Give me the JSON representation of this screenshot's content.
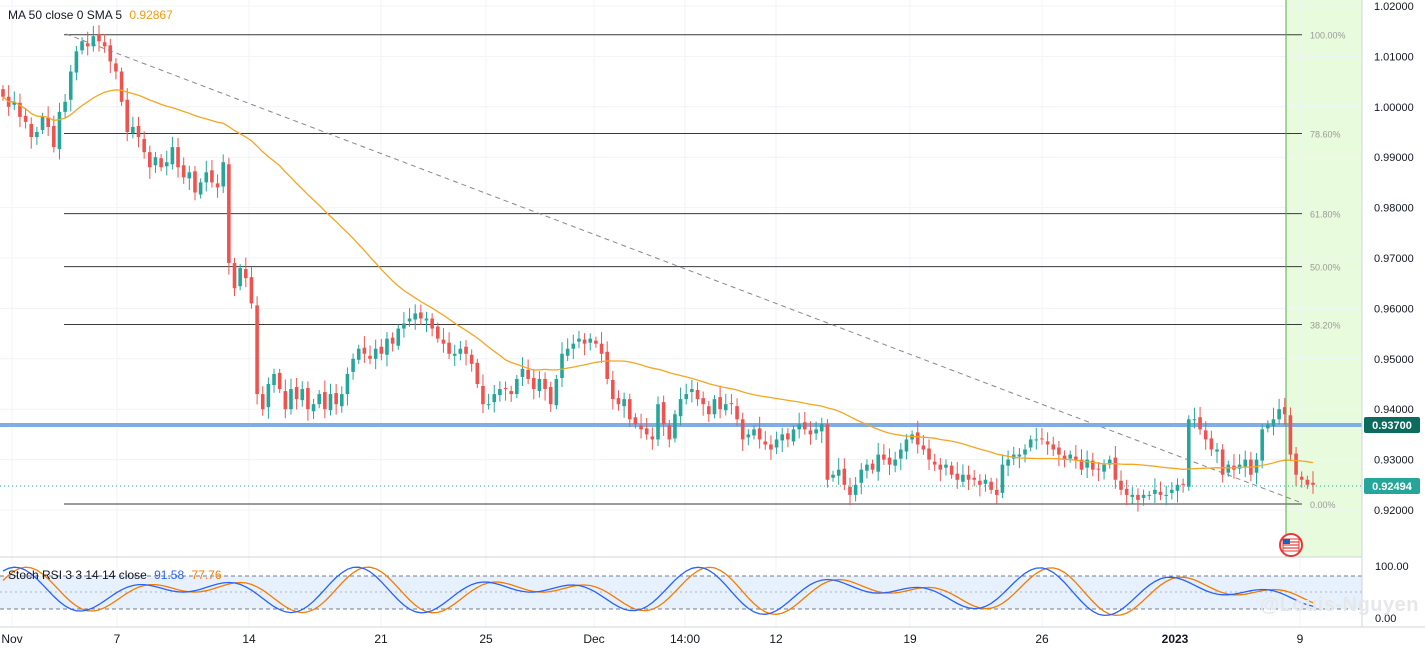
{
  "main_legend": {
    "text": "MA 50 close 0 SMA 5",
    "value": "0.92867",
    "value_color": "#f39c12"
  },
  "rsi_legend": {
    "text": "Stoch RSI 3 3 14 14 close",
    "k_value": "91.58",
    "d_value": "77.76",
    "k_color": "#2962ff",
    "d_color": "#f57c00"
  },
  "watermark": "@Louis-Nguyen",
  "colors": {
    "up": "#26a69a",
    "down": "#ef5350",
    "ma": "#f5a623",
    "level": "#7faee6",
    "fib": "#3a3a3a",
    "trend": "#888888",
    "now_band": "#e8fbdc",
    "now_line": "#4caf50"
  },
  "chart_data": {
    "type": "candlestick",
    "title": "",
    "price_axis": {
      "min": 0.915,
      "max": 1.02,
      "ticks": [
        "1.02000",
        "1.01000",
        "1.00000",
        "0.99000",
        "0.98000",
        "0.97000",
        "0.96000",
        "0.95000",
        "0.94000",
        "0.93000",
        "0.92000"
      ]
    },
    "time_axis": {
      "labels": [
        "Nov",
        "7",
        "14",
        "21",
        "25",
        "Dec",
        "14:00",
        "12",
        "19",
        "26",
        "2023",
        "9"
      ]
    },
    "horizontal_level": {
      "value": 0.937,
      "label": "0.93700"
    },
    "last_price": {
      "value": 0.92494,
      "label": "0.92494"
    },
    "fibonacci": [
      {
        "label": "100.00%",
        "value": 1.0143
      },
      {
        "label": "78.60%",
        "value": 0.9947
      },
      {
        "label": "61.80%",
        "value": 0.9788
      },
      {
        "label": "50.00%",
        "value": 0.9683
      },
      {
        "label": "38.20%",
        "value": 0.9568
      },
      {
        "label": "0.00%",
        "value": 0.9212
      }
    ],
    "trendline": {
      "from": [
        0.978,
        1.0143
      ],
      "to": [
        0.915,
        0.9215
      ],
      "style": "dashed"
    },
    "closes": [
      1.002,
      1.0,
      1.001,
      0.998,
      0.997,
      0.994,
      0.995,
      0.998,
      0.996,
      0.992,
      0.999,
      1.001,
      1.007,
      1.011,
      1.013,
      1.012,
      1.014,
      1.013,
      1.012,
      1.009,
      1.007,
      1.001,
      0.995,
      0.996,
      0.994,
      0.991,
      0.988,
      0.99,
      0.988,
      0.989,
      0.992,
      0.988,
      0.986,
      0.987,
      0.983,
      0.985,
      0.987,
      0.985,
      0.984,
      0.989,
      0.969,
      0.964,
      0.968,
      0.966,
      0.961,
      0.943,
      0.94,
      0.945,
      0.947,
      0.944,
      0.94,
      0.944,
      0.942,
      0.944,
      0.94,
      0.941,
      0.943,
      0.94,
      0.943,
      0.941,
      0.943,
      0.947,
      0.95,
      0.952,
      0.951,
      0.95,
      0.952,
      0.951,
      0.954,
      0.953,
      0.956,
      0.957,
      0.958,
      0.959,
      0.958,
      0.958,
      0.956,
      0.954,
      0.953,
      0.951,
      0.951,
      0.952,
      0.951,
      0.949,
      0.945,
      0.941,
      0.941,
      0.943,
      0.944,
      0.944,
      0.943,
      0.946,
      0.948,
      0.946,
      0.944,
      0.946,
      0.944,
      0.941,
      0.946,
      0.951,
      0.952,
      0.953,
      0.954,
      0.953,
      0.954,
      0.953,
      0.951,
      0.946,
      0.942,
      0.941,
      0.942,
      0.938,
      0.937,
      0.936,
      0.935,
      0.934,
      0.941,
      0.937,
      0.934,
      0.939,
      0.942,
      0.943,
      0.944,
      0.942,
      0.941,
      0.939,
      0.942,
      0.94,
      0.941,
      0.941,
      0.938,
      0.934,
      0.935,
      0.936,
      0.934,
      0.933,
      0.932,
      0.934,
      0.935,
      0.934,
      0.936,
      0.937,
      0.936,
      0.935,
      0.936,
      0.937,
      0.926,
      0.927,
      0.928,
      0.925,
      0.923,
      0.925,
      0.928,
      0.929,
      0.928,
      0.931,
      0.93,
      0.929,
      0.93,
      0.932,
      0.934,
      0.935,
      0.933,
      0.932,
      0.93,
      0.929,
      0.928,
      0.929,
      0.927,
      0.926,
      0.927,
      0.926,
      0.926,
      0.925,
      0.926,
      0.924,
      0.923,
      0.929,
      0.93,
      0.931,
      0.931,
      0.932,
      0.934,
      0.934,
      0.934,
      0.933,
      0.932,
      0.931,
      0.93,
      0.931,
      0.93,
      0.928,
      0.93,
      0.928,
      0.928,
      0.929,
      0.93,
      0.926,
      0.924,
      0.923,
      0.923,
      0.922,
      0.923,
      0.923,
      0.924,
      0.923,
      0.923,
      0.924,
      0.925,
      0.925,
      0.938,
      0.938,
      0.936,
      0.934,
      0.932,
      0.932,
      0.927,
      0.929,
      0.928,
      0.929,
      0.93,
      0.927,
      0.93,
      0.936,
      0.937,
      0.938,
      0.94,
      0.939,
      0.931,
      0.927,
      0.926,
      0.925,
      0.925
    ]
  }
}
